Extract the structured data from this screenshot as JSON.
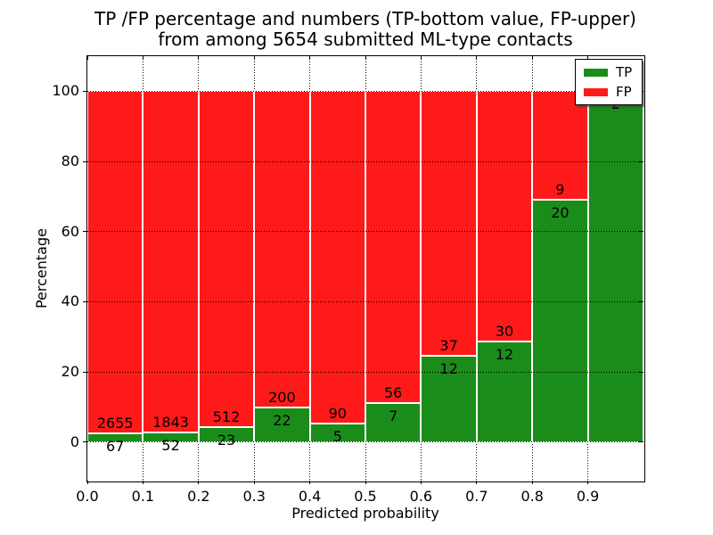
{
  "chart_data": {
    "type": "bar",
    "stacked": true,
    "title_lines": [
      "TP /FP percentage and numbers (TP-bottom value, FP-upper)",
      "from among 5654 submitted ML-type contacts"
    ],
    "xlabel": "Predicted probability",
    "ylabel": "Percentage",
    "bin_starts": [
      0.0,
      0.1,
      0.2,
      0.3,
      0.4,
      0.5,
      0.6,
      0.7,
      0.8,
      0.9
    ],
    "bin_width": 0.1,
    "series": [
      {
        "name": "TP",
        "color": "#1a8c1a",
        "counts": [
          67,
          52,
          23,
          22,
          5,
          7,
          12,
          12,
          20,
          2
        ],
        "percent": [
          2.5,
          2.7,
          4.3,
          9.9,
          5.3,
          11.1,
          24.5,
          28.6,
          69.0,
          100.0
        ]
      },
      {
        "name": "FP",
        "color": "#ff1a1a",
        "counts": [
          2655,
          1843,
          512,
          200,
          90,
          56,
          37,
          30,
          9,
          0
        ],
        "percent": [
          97.5,
          97.3,
          95.7,
          90.1,
          94.7,
          88.9,
          75.5,
          71.4,
          31.0,
          0.0
        ]
      }
    ],
    "bar_count_labels": {
      "tp": [
        "67",
        "52",
        "23",
        "22",
        "5",
        "7",
        "12",
        "12",
        "20",
        "2"
      ],
      "fp": [
        "2655",
        "1843",
        "512",
        "200",
        "90",
        "56",
        "37",
        "30",
        "9",
        null
      ]
    },
    "x_ticks": [
      0.0,
      0.1,
      0.2,
      0.3,
      0.4,
      0.5,
      0.6,
      0.7,
      0.8,
      0.9
    ],
    "x_tick_labels": [
      "0.0",
      "0.1",
      "0.2",
      "0.3",
      "0.4",
      "0.5",
      "0.6",
      "0.7",
      "0.8",
      "0.9"
    ],
    "y_ticks": [
      0,
      20,
      40,
      60,
      80,
      100
    ],
    "y_tick_labels": [
      "0",
      "20",
      "40",
      "60",
      "80",
      "100"
    ],
    "xlim": [
      0.0,
      1.0
    ],
    "ylim": [
      -11,
      110
    ],
    "grid": true,
    "grid_style": "dotted",
    "bar_edge_color": "#ffffff",
    "background": "#ffffff",
    "text_color": "#000000",
    "legend": {
      "position": "upper right",
      "entries": [
        {
          "label": "TP",
          "color": "#1a8c1a"
        },
        {
          "label": "FP",
          "color": "#ff1a1a"
        }
      ]
    }
  }
}
